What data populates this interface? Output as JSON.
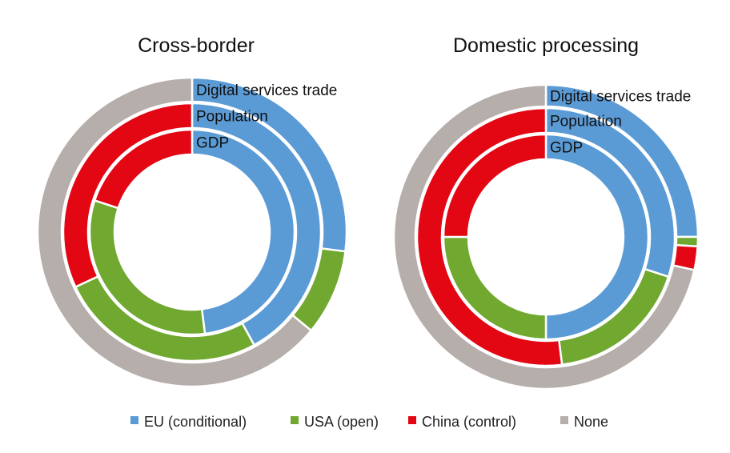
{
  "chart_data": {
    "type": "pie",
    "subtype": "multi-ring donut",
    "legend": {
      "placement": "bottom",
      "entries": [
        {
          "name": "EU (conditional)",
          "color": "#5b9bd5"
        },
        {
          "name": "USA (open)",
          "color": "#70a830"
        },
        {
          "name": "China (control)",
          "color": "#e30613"
        },
        {
          "name": "None",
          "color": "#b5aeab"
        }
      ]
    },
    "charts": [
      {
        "title": "Cross-border",
        "rings": [
          {
            "label": "GDP",
            "values": [
              48,
              32,
              20,
              0
            ]
          },
          {
            "label": "Population",
            "values": [
              42,
              26,
              32,
              0
            ]
          },
          {
            "label": "Digital services trade",
            "values": [
              27,
              9,
              0,
              64
            ]
          }
        ]
      },
      {
        "title": "Domestic processing",
        "rings": [
          {
            "label": "GDP",
            "values": [
              50,
              25,
              25,
              0
            ]
          },
          {
            "label": "Population",
            "values": [
              30,
              18,
              52,
              0
            ]
          },
          {
            "label": "Digital services trade",
            "values": [
              25,
              1,
              2.5,
              71.5
            ]
          }
        ]
      }
    ],
    "units": "percent share"
  }
}
